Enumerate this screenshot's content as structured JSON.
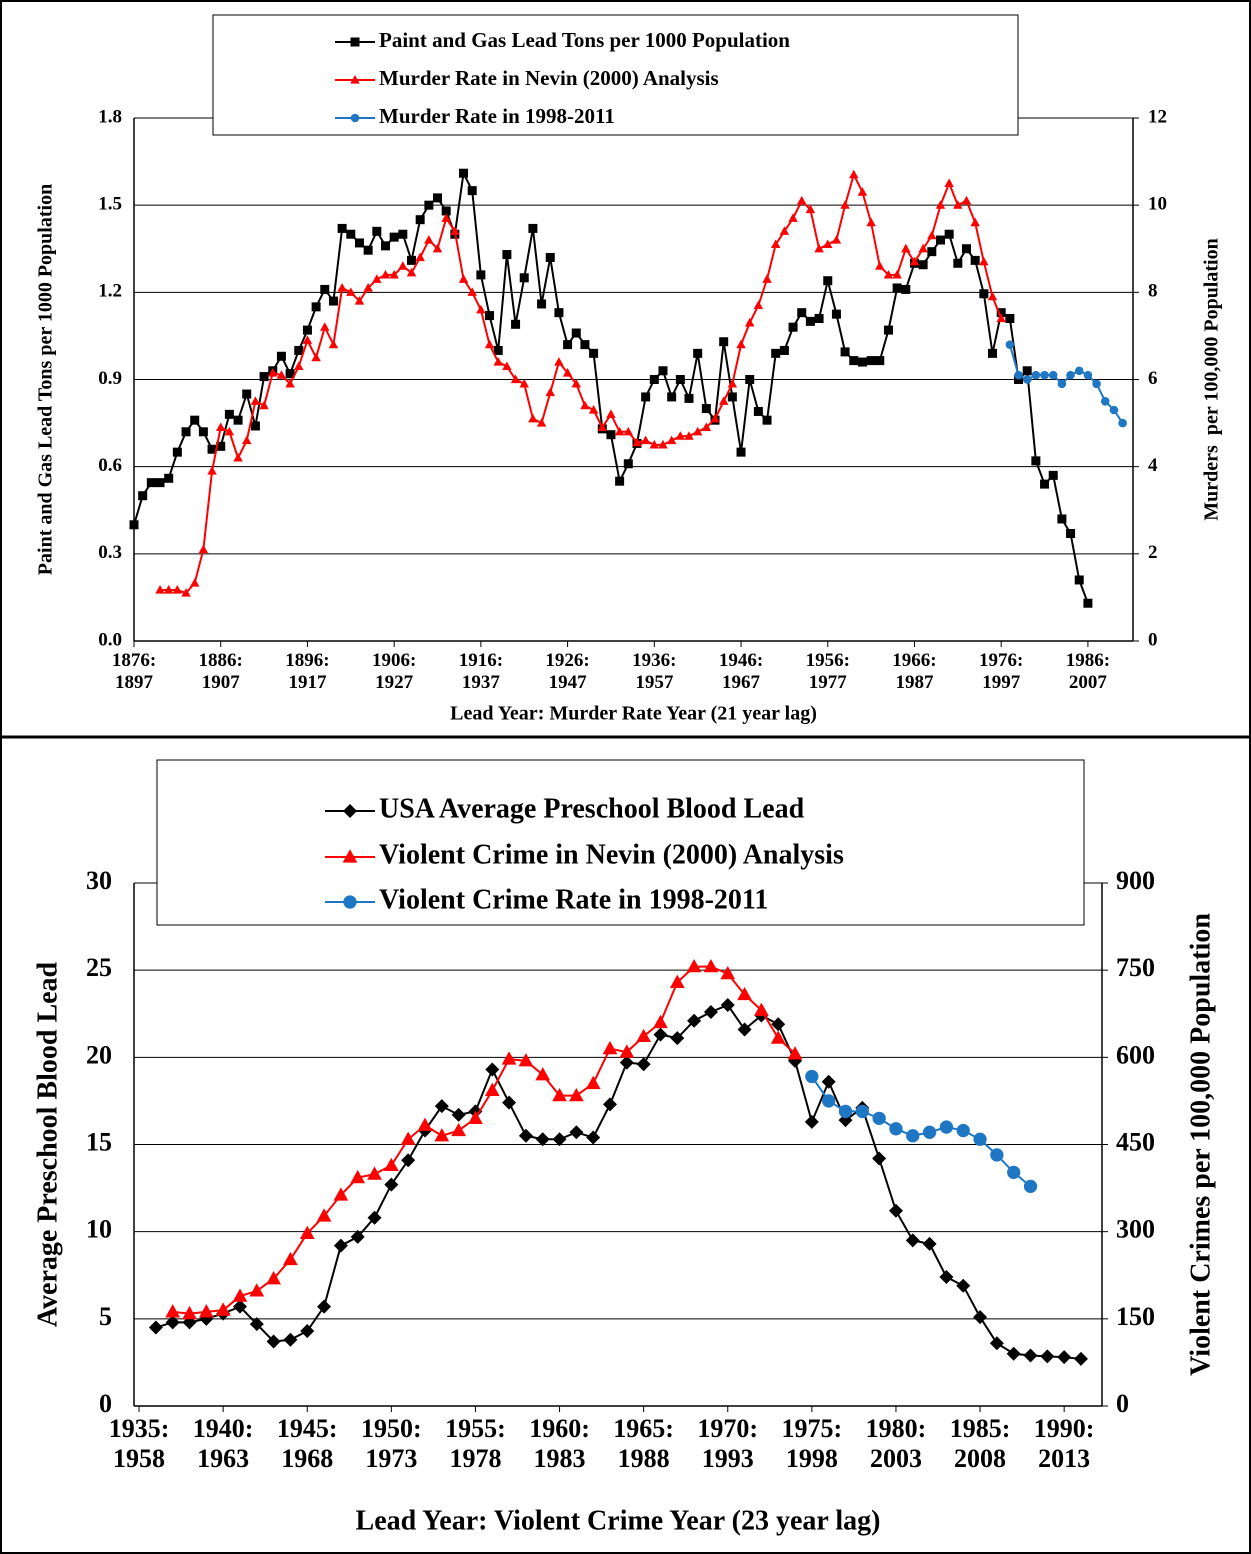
{
  "chart_data": [
    {
      "type": "line",
      "xlabel": "Lead Year: Murder Rate Year (21 year lag)",
      "ylabel": "Paint and Gas Lead Tons per 1000 Population",
      "y2label": "Murders  per 100,000 Population",
      "xlim": [
        1876,
        1991.2
      ],
      "ylim": [
        0,
        1.8
      ],
      "y2lim": [
        0,
        12
      ],
      "xticks": [
        {
          "value": 1876,
          "label": "1876:\n1897"
        },
        {
          "value": 1886,
          "label": "1886:\n1907"
        },
        {
          "value": 1896,
          "label": "1896:\n1917"
        },
        {
          "value": 1906,
          "label": "1906:\n1927"
        },
        {
          "value": 1916,
          "label": "1916:\n1937"
        },
        {
          "value": 1926,
          "label": "1926:\n1947"
        },
        {
          "value": 1936,
          "label": "1936:\n1957"
        },
        {
          "value": 1946,
          "label": "1946:\n1967"
        },
        {
          "value": 1956,
          "label": "1956:\n1977"
        },
        {
          "value": 1966,
          "label": "1966:\n1987"
        },
        {
          "value": 1976,
          "label": "1976:\n1997"
        },
        {
          "value": 1986,
          "label": "1986:\n2007"
        }
      ],
      "yticks": [
        {
          "value": 0,
          "label": "0.0"
        },
        0.3,
        0.6,
        0.9,
        1.2,
        1.5,
        1.8
      ],
      "y2ticks": [
        0,
        2,
        4,
        6,
        8,
        10,
        12
      ],
      "grid": true,
      "series": [
        {
          "name": "Paint and Gas Lead Tons per 1000 Population",
          "color": "#000000",
          "marker": "square",
          "x": [
            1876,
            1877,
            1878,
            1879,
            1880,
            1881,
            1882,
            1883,
            1884,
            1885,
            1886,
            1887,
            1888,
            1889,
            1890,
            1891,
            1892,
            1893,
            1894,
            1895,
            1896,
            1897,
            1898,
            1899,
            1900,
            1901,
            1902,
            1903,
            1904,
            1905,
            1906,
            1907,
            1908,
            1909,
            1910,
            1911,
            1912,
            1913,
            1914,
            1915,
            1916,
            1917,
            1918,
            1919,
            1920,
            1921,
            1922,
            1923,
            1924,
            1925,
            1926,
            1927,
            1928,
            1929,
            1930,
            1931,
            1932,
            1933,
            1934,
            1935,
            1936,
            1937,
            1938,
            1939,
            1940,
            1941,
            1942,
            1943,
            1944,
            1945,
            1946,
            1947,
            1948,
            1949,
            1950,
            1951,
            1952,
            1953,
            1954,
            1955,
            1956,
            1957,
            1958,
            1959,
            1960,
            1961,
            1962,
            1963,
            1964,
            1965,
            1966,
            1967,
            1968,
            1969,
            1970,
            1971,
            1972,
            1973,
            1974,
            1975,
            1976,
            1977,
            1978,
            1979,
            1980,
            1981,
            1982,
            1983,
            1984,
            1985,
            1986
          ],
          "values": [
            0.4,
            0.5,
            0.545,
            0.545,
            0.56,
            0.65,
            0.72,
            0.76,
            0.72,
            0.66,
            0.67,
            0.78,
            0.76,
            0.85,
            0.74,
            0.91,
            0.93,
            0.98,
            0.92,
            1.0,
            1.07,
            1.15,
            1.21,
            1.17,
            1.42,
            1.4,
            1.37,
            1.345,
            1.41,
            1.36,
            1.39,
            1.4,
            1.31,
            1.45,
            1.5,
            1.525,
            1.48,
            1.4,
            1.61,
            1.55,
            1.26,
            1.12,
            1.0,
            1.33,
            1.09,
            1.25,
            1.42,
            1.16,
            1.32,
            1.13,
            1.02,
            1.06,
            1.02,
            0.99,
            0.73,
            0.71,
            0.55,
            0.61,
            0.68,
            0.84,
            0.9,
            0.93,
            0.84,
            0.9,
            0.835,
            0.99,
            0.8,
            0.76,
            1.03,
            0.84,
            0.65,
            0.9,
            0.79,
            0.76,
            0.99,
            1.0,
            1.08,
            1.13,
            1.1,
            1.11,
            1.24,
            1.125,
            0.995,
            0.965,
            0.96,
            0.965,
            0.965,
            1.07,
            1.215,
            1.21,
            1.3,
            1.295,
            1.34,
            1.38,
            1.4,
            1.3,
            1.35,
            1.31,
            1.195,
            0.99,
            1.13,
            1.11,
            0.9,
            0.93,
            0.62,
            0.54,
            0.57,
            0.42,
            0.37,
            0.21,
            0.13
          ]
        },
        {
          "name": "Murder Rate in Nevin (2000) Analysis",
          "color": "#ff0000",
          "marker": "triangle",
          "axis": "y2",
          "x": [
            1879,
            1880,
            1881,
            1882,
            1883,
            1884,
            1885,
            1886,
            1887,
            1888,
            1889,
            1890,
            1891,
            1892,
            1893,
            1894,
            1895,
            1896,
            1897,
            1898,
            1899,
            1900,
            1901,
            1902,
            1903,
            1904,
            1905,
            1906,
            1907,
            1908,
            1909,
            1910,
            1911,
            1912,
            1913,
            1914,
            1915,
            1916,
            1917,
            1918,
            1919,
            1920,
            1921,
            1922,
            1923,
            1924,
            1925,
            1926,
            1927,
            1928,
            1929,
            1930,
            1931,
            1932,
            1933,
            1934,
            1935,
            1936,
            1937,
            1938,
            1939,
            1940,
            1941,
            1942,
            1943,
            1944,
            1945,
            1946,
            1947,
            1948,
            1949,
            1950,
            1951,
            1952,
            1953,
            1954,
            1955,
            1956,
            1957,
            1958,
            1959,
            1960,
            1961,
            1962,
            1963,
            1964,
            1965,
            1966,
            1967,
            1968,
            1969,
            1970,
            1971,
            1972,
            1973,
            1974,
            1975,
            1976
          ],
          "values": [
            1.17,
            1.17,
            1.17,
            1.1,
            1.33,
            2.1,
            3.9,
            4.9,
            4.8,
            4.2,
            4.6,
            5.5,
            5.4,
            6.15,
            6.1,
            5.9,
            6.3,
            6.9,
            6.5,
            7.2,
            6.8,
            8.1,
            8.0,
            7.8,
            8.1,
            8.3,
            8.4,
            8.4,
            8.6,
            8.45,
            8.8,
            9.2,
            9.0,
            9.7,
            9.4,
            8.3,
            8.0,
            7.6,
            6.8,
            6.4,
            6.3,
            6.0,
            5.9,
            5.1,
            5.0,
            5.7,
            6.4,
            6.15,
            5.9,
            5.4,
            5.3,
            4.9,
            5.2,
            4.8,
            4.8,
            4.55,
            4.6,
            4.5,
            4.5,
            4.6,
            4.7,
            4.7,
            4.8,
            4.9,
            5.1,
            5.5,
            5.9,
            6.8,
            7.3,
            7.7,
            8.3,
            9.1,
            9.4,
            9.7,
            10.1,
            9.9,
            9.0,
            9.1,
            9.2,
            10.0,
            10.7,
            10.3,
            9.6,
            8.6,
            8.4,
            8.4,
            9.0,
            8.7,
            9.0,
            9.3,
            10.0,
            10.5,
            10.0,
            10.1,
            9.6,
            8.7,
            7.9,
            7.4
          ]
        },
        {
          "name": "Murder Rate in 1998-2011",
          "color": "#1f77c4",
          "marker": "circle",
          "axis": "y2",
          "x": [
            1977,
            1978,
            1979,
            1980,
            1981,
            1982,
            1983,
            1984,
            1985,
            1986,
            1987,
            1988,
            1989,
            1990
          ],
          "values": [
            6.8,
            6.1,
            6.0,
            6.1,
            6.1,
            6.1,
            5.9,
            6.1,
            6.2,
            6.1,
            5.9,
            5.5,
            5.3,
            5.0
          ]
        }
      ]
    },
    {
      "type": "line",
      "xlabel": "Lead Year: Violent Crime Year (23 year lag)",
      "ylabel": "Average Preschool Blood Lead",
      "y2label": "Violent Crimes per 100,000 Population",
      "xlim": [
        1934.7,
        1992.25
      ],
      "ylim": [
        0,
        30
      ],
      "y2lim": [
        0,
        900
      ],
      "xticks": [
        {
          "value": 1935,
          "label": "1935:\n1958"
        },
        {
          "value": 1940,
          "label": "1940:\n1963"
        },
        {
          "value": 1945,
          "label": "1945:\n1968"
        },
        {
          "value": 1950,
          "label": "1950:\n1973"
        },
        {
          "value": 1955,
          "label": "1955:\n1978"
        },
        {
          "value": 1960,
          "label": "1960:\n1983"
        },
        {
          "value": 1965,
          "label": "1965:\n1988"
        },
        {
          "value": 1970,
          "label": "1970:\n1993"
        },
        {
          "value": 1975,
          "label": "1975:\n1998"
        },
        {
          "value": 1980,
          "label": "1980:\n2003"
        },
        {
          "value": 1985,
          "label": "1985:\n2008"
        },
        {
          "value": 1990,
          "label": "1990:\n2013"
        }
      ],
      "yticks": [
        0,
        5,
        10,
        15,
        20,
        25,
        30
      ],
      "y2ticks": [
        0,
        150,
        300,
        450,
        600,
        750,
        900
      ],
      "grid": true,
      "series": [
        {
          "name": "USA Average Preschool Blood Lead",
          "color": "#000000",
          "marker": "diamond",
          "x": [
            1936,
            1937,
            1938,
            1939,
            1940,
            1941,
            1942,
            1943,
            1944,
            1945,
            1946,
            1947,
            1948,
            1949,
            1950,
            1951,
            1952,
            1953,
            1954,
            1955,
            1956,
            1957,
            1958,
            1959,
            1960,
            1961,
            1962,
            1963,
            1964,
            1965,
            1966,
            1967,
            1968,
            1969,
            1970,
            1971,
            1972,
            1973,
            1974,
            1975,
            1976,
            1977,
            1978,
            1979,
            1980,
            1981,
            1982,
            1983,
            1984,
            1985,
            1986,
            1987,
            1988,
            1989,
            1990,
            1991
          ],
          "values": [
            4.5,
            4.8,
            4.8,
            5.0,
            5.3,
            5.7,
            4.7,
            3.7,
            3.8,
            4.3,
            5.7,
            9.2,
            9.7,
            10.8,
            12.7,
            14.1,
            15.8,
            17.2,
            16.7,
            16.9,
            19.3,
            17.4,
            15.5,
            15.3,
            15.3,
            15.7,
            15.4,
            17.3,
            19.7,
            19.6,
            21.3,
            21.1,
            22.1,
            22.6,
            23.0,
            21.6,
            22.4,
            21.9,
            19.8,
            16.3,
            18.6,
            16.4,
            17.1,
            14.2,
            11.2,
            9.5,
            9.3,
            7.4,
            6.9,
            5.1,
            3.6,
            3.0,
            2.9,
            2.85,
            2.8,
            2.7
          ]
        },
        {
          "name": "Violent Crime in Nevin (2000) Analysis",
          "color": "#ff0000",
          "marker": "triangle",
          "axis": "y2",
          "x": [
            1937,
            1938,
            1939,
            1940,
            1941,
            1942,
            1943,
            1944,
            1945,
            1946,
            1947,
            1948,
            1949,
            1950,
            1951,
            1952,
            1953,
            1954,
            1955,
            1956,
            1957,
            1958,
            1959,
            1960,
            1961,
            1962,
            1963,
            1964,
            1965,
            1966,
            1967,
            1968,
            1969,
            1970,
            1971,
            1972,
            1973,
            1974
          ],
          "values": [
            162,
            159,
            162,
            165,
            189,
            198,
            219,
            252,
            297,
            327,
            363,
            393,
            399,
            414,
            459,
            483,
            465,
            474,
            495,
            543,
            597,
            594,
            570,
            534,
            534,
            555,
            615,
            609,
            636,
            660,
            729,
            756,
            756,
            744,
            708,
            681,
            633,
            606
          ]
        },
        {
          "name": "Violent Crime Rate in 1998-2011",
          "color": "#1f77c4",
          "marker": "circle",
          "axis": "y2",
          "x": [
            1975,
            1976,
            1977,
            1978,
            1979,
            1980,
            1981,
            1982,
            1983,
            1984,
            1985,
            1986,
            1987,
            1988
          ],
          "values": [
            567,
            525,
            507,
            507,
            495,
            477,
            465,
            471,
            480,
            474,
            459,
            432,
            402,
            378
          ]
        }
      ]
    }
  ]
}
